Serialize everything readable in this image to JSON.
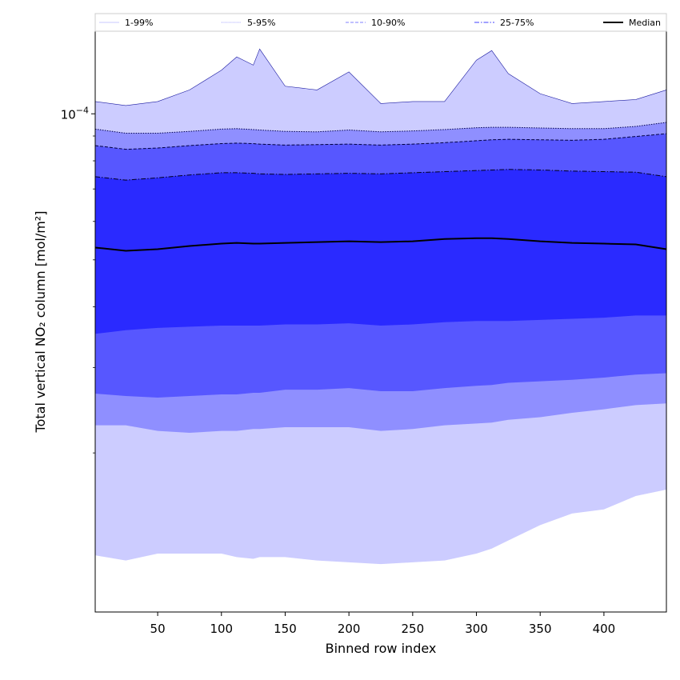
{
  "chart_data": {
    "type": "area",
    "title": "",
    "xlabel": "Binned row index",
    "ylabel": "Total vertical NO₂ column [mol/m²]",
    "yscale": "log",
    "xlim": [
      1,
      449
    ],
    "ylim": [
      9.4e-06,
      0.000148
    ],
    "x_ticks": [
      50,
      100,
      150,
      200,
      250,
      300,
      350,
      400
    ],
    "x_tick_labels": [
      "50",
      "100",
      "150",
      "200",
      "250",
      "300",
      "350",
      "400"
    ],
    "y_ticks": [
      0.0001
    ],
    "y_tick_label_base": "10",
    "y_tick_label_exp": "−4",
    "y_minor_ticks": [
      2e-05,
      3e-05,
      4e-05,
      5e-05,
      6e-05,
      7e-05,
      8e-05,
      9e-05
    ],
    "grid": false,
    "legend_placement": "top",
    "legend": [
      {
        "label": "1-99%",
        "style": "solid",
        "color": "#c8c8ff"
      },
      {
        "label": "5-95%",
        "style": "dotted",
        "color": "#9090ff"
      },
      {
        "label": "10-90%",
        "style": "dashed",
        "color": "#8080ff"
      },
      {
        "label": "25-75%",
        "style": "dashdot",
        "color": "#4040ff"
      },
      {
        "label": "Median",
        "style": "solid",
        "color": "#000000"
      }
    ],
    "colors": {
      "band_1_99": "#ccccff",
      "band_5_95": "#8f8fff",
      "band_10_90": "#5757ff",
      "band_25_75": "#2a2aff",
      "median": "#000000"
    },
    "x": [
      1,
      25,
      50,
      75,
      100,
      112,
      125,
      130,
      150,
      175,
      200,
      225,
      250,
      275,
      300,
      312,
      325,
      350,
      375,
      400,
      425,
      449
    ],
    "series": [
      {
        "name": "1-99%",
        "lower": [
          1.23e-05,
          1.2e-05,
          1.24e-05,
          1.24e-05,
          1.24e-05,
          1.22e-05,
          1.21e-05,
          1.22e-05,
          1.22e-05,
          1.2e-05,
          1.19e-05,
          1.18e-05,
          1.19e-05,
          1.2e-05,
          1.24e-05,
          1.27e-05,
          1.32e-05,
          1.42e-05,
          1.5e-05,
          1.53e-05,
          1.63e-05,
          1.68e-05
        ],
        "upper": [
          0.000106,
          0.000104,
          0.000106,
          0.000112,
          0.000123,
          0.000131,
          0.000126,
          0.000136,
          0.000114,
          0.000112,
          0.000122,
          0.000105,
          0.000106,
          0.000106,
          0.000129,
          0.000135,
          0.000121,
          0.00011,
          0.000105,
          0.000106,
          0.000107,
          0.000112
        ]
      },
      {
        "name": "5-95%",
        "lower": [
          2.28e-05,
          2.28e-05,
          2.22e-05,
          2.2e-05,
          2.22e-05,
          2.22e-05,
          2.24e-05,
          2.24e-05,
          2.26e-05,
          2.26e-05,
          2.26e-05,
          2.22e-05,
          2.24e-05,
          2.28e-05,
          2.3e-05,
          2.31e-05,
          2.34e-05,
          2.37e-05,
          2.42e-05,
          2.46e-05,
          2.51e-05,
          2.53e-05
        ],
        "upper": [
          9.3e-05,
          9.12e-05,
          9.12e-05,
          9.2e-05,
          9.3e-05,
          9.32e-05,
          9.28e-05,
          9.26e-05,
          9.2e-05,
          9.18e-05,
          9.26e-05,
          9.18e-05,
          9.22e-05,
          9.28e-05,
          9.36e-05,
          9.38e-05,
          9.38e-05,
          9.35e-05,
          9.32e-05,
          9.32e-05,
          9.42e-05,
          9.6e-05
        ]
      },
      {
        "name": "10-90%",
        "lower": [
          2.65e-05,
          2.62e-05,
          2.6e-05,
          2.62e-05,
          2.64e-05,
          2.64e-05,
          2.66e-05,
          2.66e-05,
          2.7e-05,
          2.7e-05,
          2.72e-05,
          2.68e-05,
          2.68e-05,
          2.72e-05,
          2.75e-05,
          2.76e-05,
          2.79e-05,
          2.81e-05,
          2.83e-05,
          2.86e-05,
          2.9e-05,
          2.92e-05
        ],
        "upper": [
          8.6e-05,
          8.45e-05,
          8.5e-05,
          8.6e-05,
          8.68e-05,
          8.7e-05,
          8.68e-05,
          8.66e-05,
          8.62e-05,
          8.64e-05,
          8.66e-05,
          8.62e-05,
          8.66e-05,
          8.72e-05,
          8.8e-05,
          8.84e-05,
          8.86e-05,
          8.84e-05,
          8.82e-05,
          8.86e-05,
          8.98e-05,
          9.1e-05
        ]
      },
      {
        "name": "25-75%",
        "lower": [
          3.52e-05,
          3.58e-05,
          3.62e-05,
          3.64e-05,
          3.66e-05,
          3.66e-05,
          3.66e-05,
          3.66e-05,
          3.68e-05,
          3.68e-05,
          3.7e-05,
          3.66e-05,
          3.68e-05,
          3.72e-05,
          3.74e-05,
          3.74e-05,
          3.74e-05,
          3.76e-05,
          3.78e-05,
          3.8e-05,
          3.84e-05,
          3.84e-05
        ],
        "upper": [
          7.42e-05,
          7.3e-05,
          7.38e-05,
          7.48e-05,
          7.56e-05,
          7.56e-05,
          7.54e-05,
          7.52e-05,
          7.5e-05,
          7.52e-05,
          7.54e-05,
          7.52e-05,
          7.56e-05,
          7.6e-05,
          7.64e-05,
          7.66e-05,
          7.68e-05,
          7.66e-05,
          7.62e-05,
          7.6e-05,
          7.58e-05,
          7.42e-05
        ]
      },
      {
        "name": "Median",
        "values": [
          5.3e-05,
          5.22e-05,
          5.26e-05,
          5.34e-05,
          5.4e-05,
          5.42e-05,
          5.4e-05,
          5.4e-05,
          5.42e-05,
          5.44e-05,
          5.46e-05,
          5.44e-05,
          5.46e-05,
          5.52e-05,
          5.54e-05,
          5.54e-05,
          5.52e-05,
          5.46e-05,
          5.42e-05,
          5.4e-05,
          5.38e-05,
          5.26e-05
        ]
      }
    ]
  }
}
